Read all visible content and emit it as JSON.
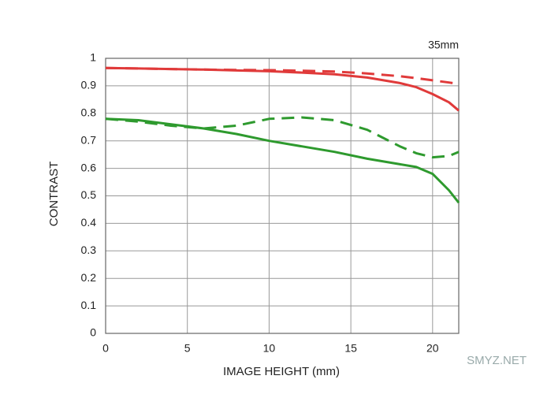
{
  "chart_data": {
    "type": "line",
    "title": "35mm",
    "xlabel": "IMAGE HEIGHT (mm)",
    "ylabel": "CONTRAST",
    "x": [
      0,
      2,
      4,
      6,
      8,
      10,
      12,
      14,
      16,
      18,
      19,
      20,
      21,
      21.6
    ],
    "series": [
      {
        "color": "#e03a3a",
        "dash": false,
        "values": [
          0.965,
          0.963,
          0.961,
          0.959,
          0.956,
          0.953,
          0.948,
          0.942,
          0.93,
          0.91,
          0.895,
          0.87,
          0.84,
          0.81
        ]
      },
      {
        "color": "#e03a3a",
        "dash": true,
        "values": [
          0.965,
          0.963,
          0.961,
          0.959,
          0.958,
          0.957,
          0.955,
          0.952,
          0.945,
          0.935,
          0.928,
          0.92,
          0.912,
          0.907
        ]
      },
      {
        "color": "#2e9a2e",
        "dash": false,
        "values": [
          0.78,
          0.775,
          0.76,
          0.745,
          0.725,
          0.7,
          0.68,
          0.66,
          0.635,
          0.615,
          0.605,
          0.58,
          0.52,
          0.475
        ]
      },
      {
        "color": "#2e9a2e",
        "dash": true,
        "values": [
          0.78,
          0.77,
          0.755,
          0.745,
          0.755,
          0.78,
          0.785,
          0.775,
          0.74,
          0.68,
          0.655,
          0.64,
          0.645,
          0.66
        ]
      }
    ],
    "xlim": [
      0,
      21.6
    ],
    "ylim": [
      0,
      1
    ],
    "xticks": [
      0,
      5,
      10,
      15,
      20
    ],
    "yticks": [
      0,
      0.1,
      0.2,
      0.3,
      0.4,
      0.5,
      0.6,
      0.7,
      0.8,
      0.9,
      1
    ],
    "grid": true
  },
  "watermark": "SMYZ.NET"
}
